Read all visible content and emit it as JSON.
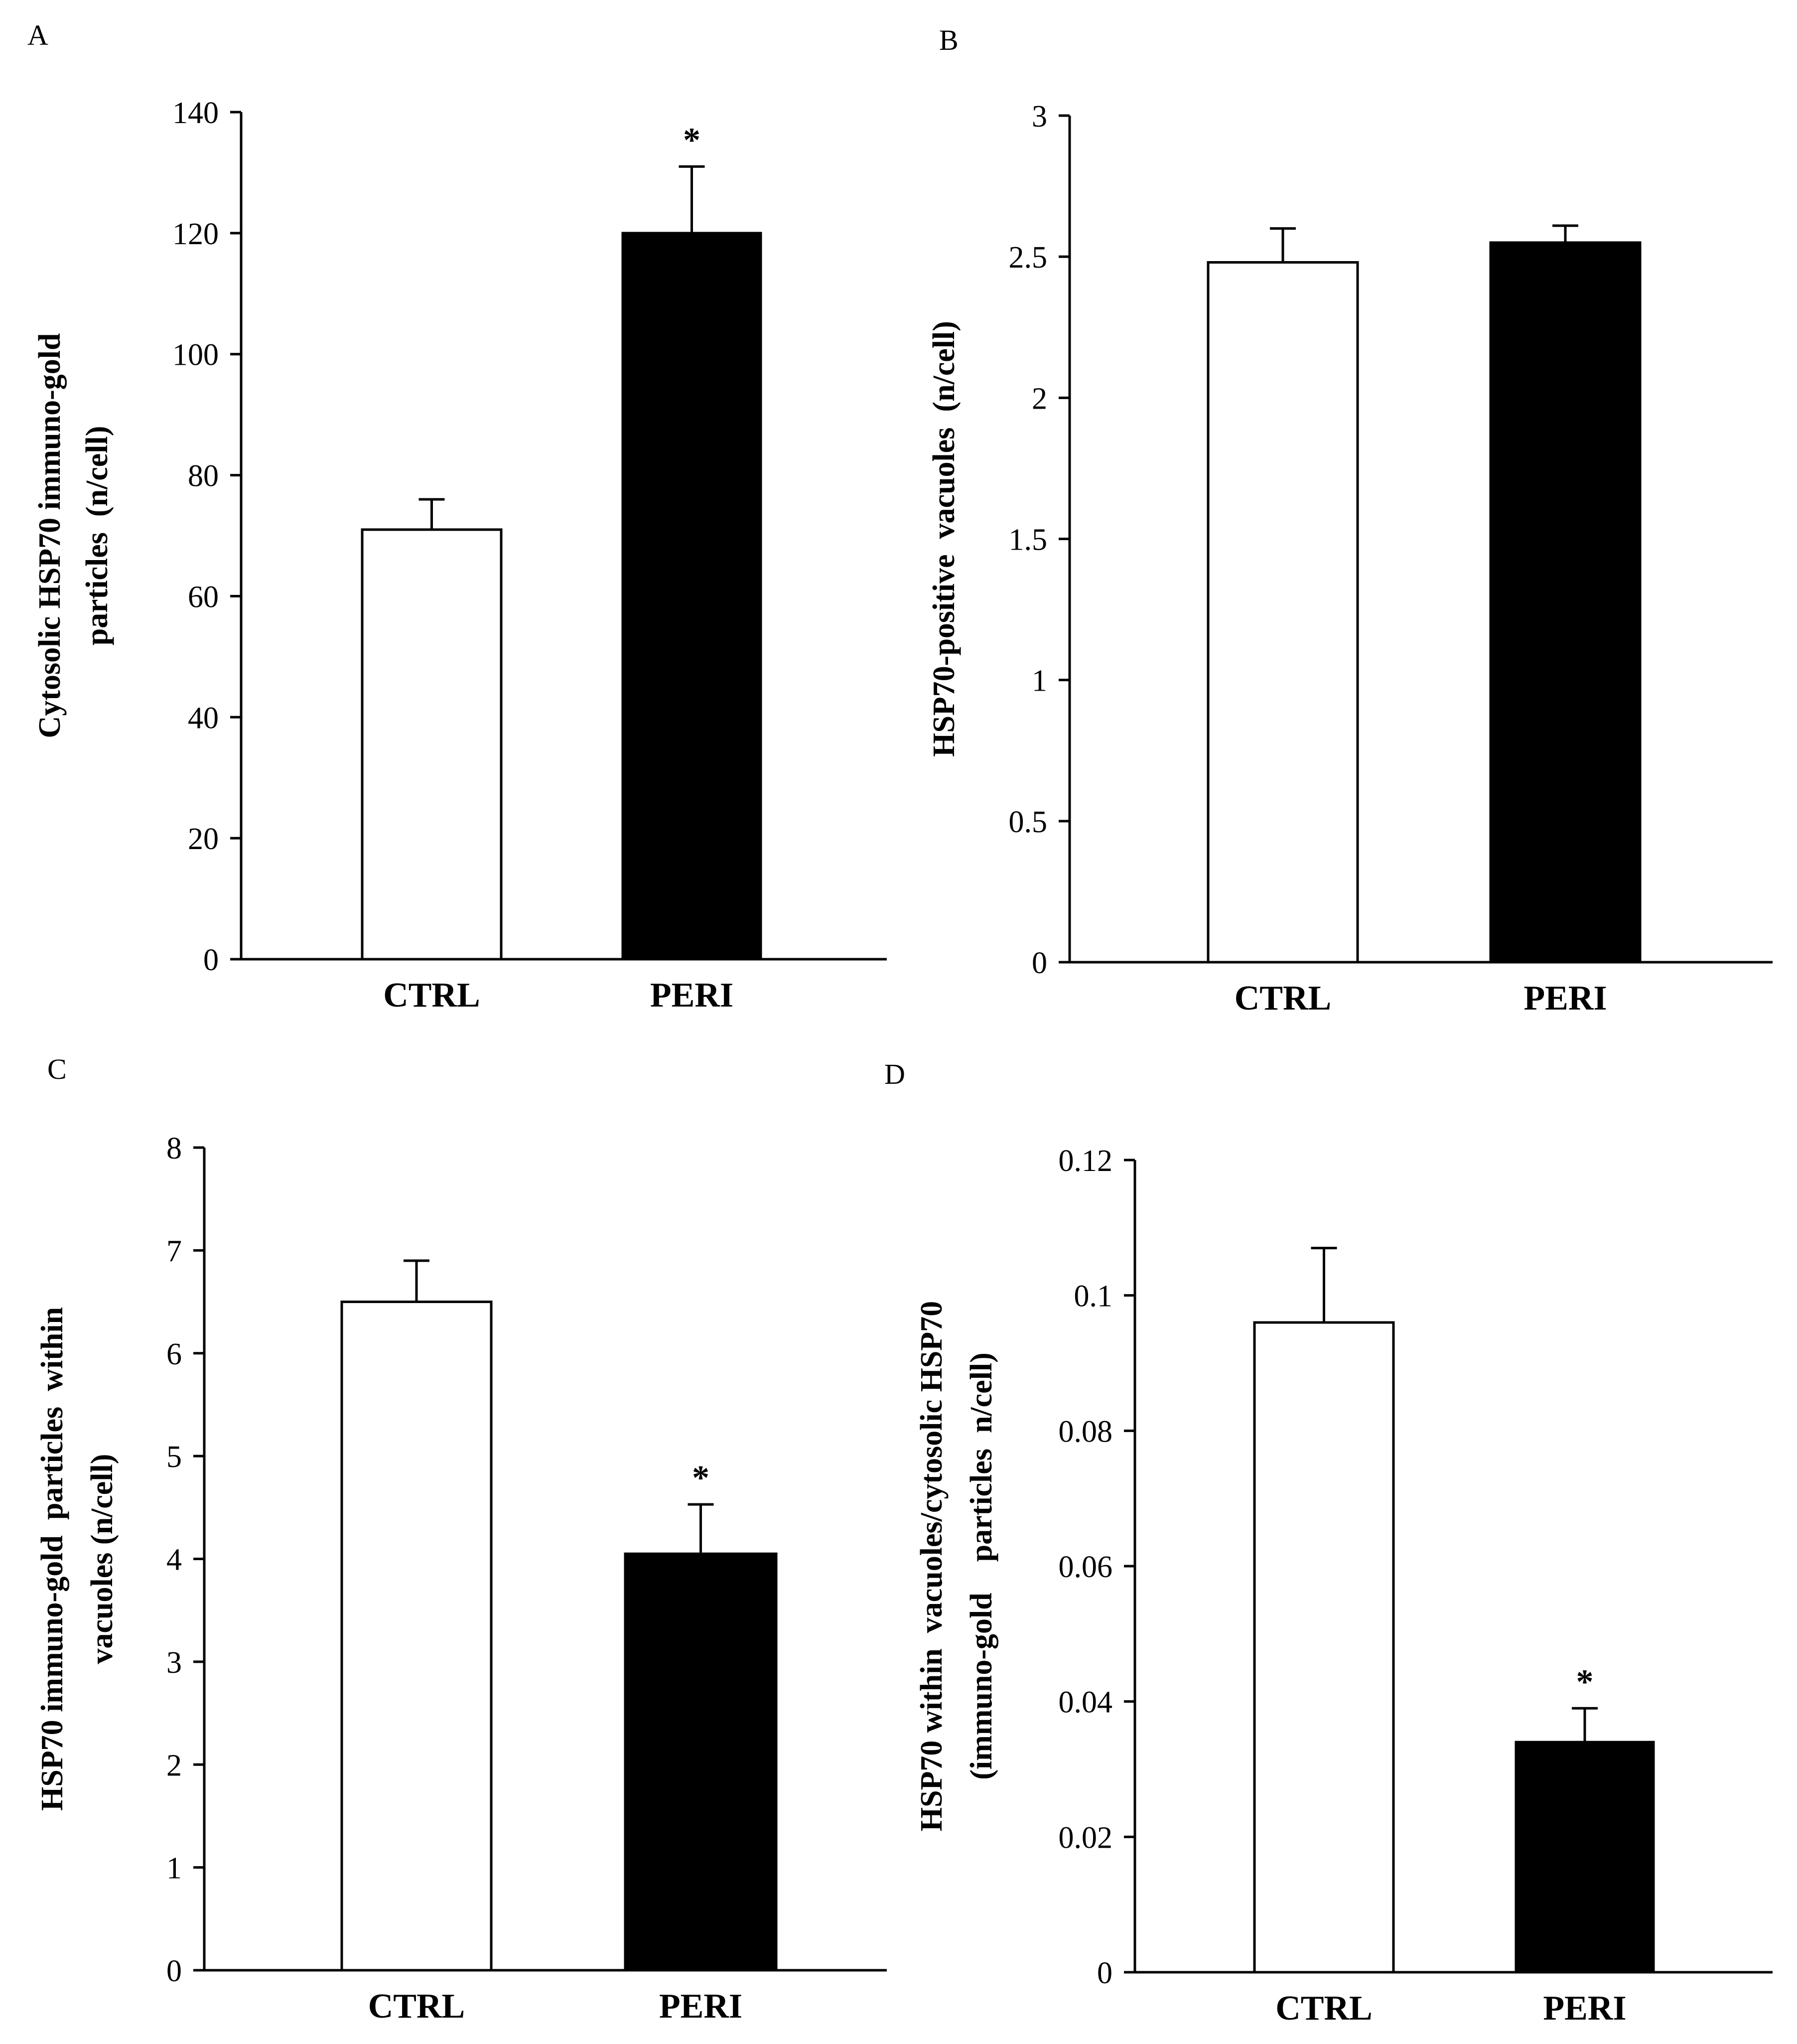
{
  "chart_data": [
    {
      "panel": "A",
      "type": "bar",
      "categories": [
        "CTRL",
        "PERI"
      ],
      "values": [
        71,
        120
      ],
      "errors": [
        5,
        11
      ],
      "significance": [
        "",
        "*"
      ],
      "bar_colors": [
        "#ffffff",
        "#000000"
      ],
      "ylabel_lines": [
        "Cytosolic HSP70 immuno-gold",
        "particles  (n/cell)"
      ],
      "ylim": [
        0,
        140
      ],
      "yticks": [
        0,
        20,
        40,
        60,
        80,
        100,
        120,
        140
      ],
      "ytick_labels": [
        "0",
        "20",
        "40",
        "60",
        "80",
        "100",
        "120",
        "140"
      ],
      "xlabel": "",
      "grid": false
    },
    {
      "panel": "B",
      "type": "bar",
      "categories": [
        "CTRL",
        "PERI"
      ],
      "values": [
        2.48,
        2.55
      ],
      "errors": [
        0.12,
        0.06
      ],
      "significance": [
        "",
        ""
      ],
      "bar_colors": [
        "#ffffff",
        "#000000"
      ],
      "ylabel_lines": [
        "HSP70-positive  vacuoles  (n/cell)"
      ],
      "ylim": [
        0,
        3
      ],
      "yticks": [
        0,
        0.5,
        1,
        1.5,
        2,
        2.5,
        3
      ],
      "ytick_labels": [
        "0",
        "0.5",
        "1",
        "1.5",
        "2",
        "2.5",
        "3"
      ],
      "xlabel": "",
      "grid": false
    },
    {
      "panel": "C",
      "type": "bar",
      "categories": [
        "CTRL",
        "PERI"
      ],
      "values": [
        6.5,
        4.05
      ],
      "errors": [
        0.4,
        0.48
      ],
      "significance": [
        "",
        "*"
      ],
      "bar_colors": [
        "#ffffff",
        "#000000"
      ],
      "ylabel_lines": [
        "HSP70 immuno-gold  particles  within",
        "vacuoles (n/cell)"
      ],
      "ylim": [
        0,
        8
      ],
      "yticks": [
        0,
        1,
        2,
        3,
        4,
        5,
        6,
        7,
        8
      ],
      "ytick_labels": [
        "0",
        "1",
        "2",
        "3",
        "4",
        "5",
        "6",
        "7",
        "8"
      ],
      "xlabel": "",
      "grid": false
    },
    {
      "panel": "D",
      "type": "bar",
      "categories": [
        "CTRL",
        "PERI"
      ],
      "values": [
        0.096,
        0.034
      ],
      "errors": [
        0.011,
        0.005
      ],
      "significance": [
        "",
        "*"
      ],
      "bar_colors": [
        "#ffffff",
        "#000000"
      ],
      "ylabel_lines": [
        "HSP70 within  vacuoles/cytosolic HSP70",
        "(immuno-gold    particles  n/cell)"
      ],
      "ylim": [
        0,
        0.12
      ],
      "yticks": [
        0,
        0.02,
        0.04,
        0.06,
        0.08,
        0.1,
        0.12
      ],
      "ytick_labels": [
        "0",
        "0.02",
        "0.04",
        "0.06",
        "0.08",
        "0.1",
        "0.12"
      ],
      "xlabel": "",
      "grid": false
    }
  ]
}
